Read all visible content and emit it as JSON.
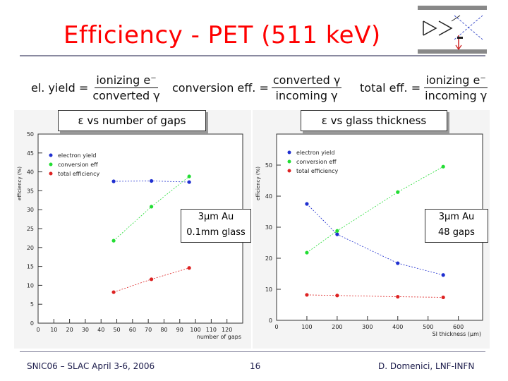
{
  "slide": {
    "title": "Efficiency - PET (511 keV)",
    "formulas": [
      {
        "label": "el. yield =",
        "numerator": "ionizing e⁻",
        "denominator": "converted γ"
      },
      {
        "label": "conversion eff. =",
        "numerator": "converted γ",
        "denominator": "incoming γ"
      },
      {
        "label": "total eff. =",
        "numerator": "ionizing e⁻",
        "denominator": "incoming γ"
      }
    ],
    "footer": {
      "left": "SNIC06 – SLAC April 3-6, 2006",
      "page": "16",
      "right": "D. Domenici, LNF-INFN"
    },
    "colors": {
      "title": "#ff0000",
      "blue": "#1f2fd0",
      "green": "#22dd33",
      "red": "#dd2222"
    }
  },
  "chart_data": [
    {
      "type": "scatter",
      "box_label": "ε vs number of gaps",
      "xlabel": "number of gaps",
      "ylabel": "efficiency (%)",
      "xlim": [
        0,
        130
      ],
      "ylim": [
        0,
        50
      ],
      "xticks": [
        0,
        10,
        20,
        30,
        40,
        50,
        60,
        70,
        80,
        90,
        100,
        110,
        120
      ],
      "yticks": [
        0,
        5,
        10,
        15,
        20,
        25,
        30,
        35,
        40,
        45,
        50
      ],
      "legend": [
        "electron yield",
        "conversion eff",
        "total efficiency"
      ],
      "note": [
        "3μm Au",
        "0.1mm glass"
      ],
      "series": [
        {
          "name": "electron yield",
          "color": "blue",
          "x": [
            48,
            72,
            96
          ],
          "y": [
            37.5,
            37.6,
            37.3
          ]
        },
        {
          "name": "conversion eff",
          "color": "green",
          "x": [
            48,
            72,
            96
          ],
          "y": [
            21.8,
            30.8,
            38.8
          ]
        },
        {
          "name": "total efficiency",
          "color": "red",
          "x": [
            48,
            72,
            96
          ],
          "y": [
            8.2,
            11.6,
            14.6
          ]
        }
      ]
    },
    {
      "type": "scatter",
      "box_label": "ε vs glass thickness",
      "xlabel": "SI thickness (μm)",
      "ylabel": "efficiency (%)",
      "xlim": [
        0,
        680
      ],
      "ylim": [
        0,
        60
      ],
      "xticks": [
        0,
        100,
        200,
        300,
        400,
        500,
        600
      ],
      "yticks": [
        0,
        10,
        20,
        30,
        40,
        50
      ],
      "legend": [
        "electron yield",
        "conversion eff",
        "total efficiency"
      ],
      "note": [
        "3μm Au",
        "48 gaps"
      ],
      "series": [
        {
          "name": "electron yield",
          "color": "blue",
          "x": [
            100,
            200,
            400,
            550
          ],
          "y": [
            37.5,
            27.7,
            18.4,
            14.6
          ]
        },
        {
          "name": "conversion eff",
          "color": "green",
          "x": [
            100,
            200,
            400,
            550
          ],
          "y": [
            21.8,
            28.8,
            41.3,
            49.5
          ]
        },
        {
          "name": "total efficiency",
          "color": "red",
          "x": [
            100,
            200,
            400,
            550
          ],
          "y": [
            8.2,
            8.0,
            7.6,
            7.4
          ]
        }
      ]
    }
  ]
}
